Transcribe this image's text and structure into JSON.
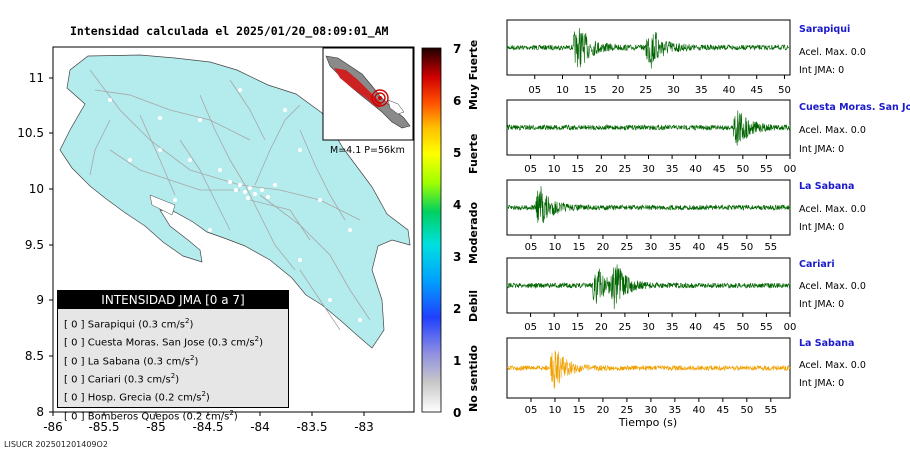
{
  "map": {
    "title": "Intensidad calculada el 2025/01/20_08:09:01_AM",
    "inset_label": "M=4.1 P=56km",
    "footer": "LISUCR 202501201409O2",
    "y_ticks": [
      "11",
      "10.5",
      "10",
      "9.5",
      "9",
      "8.5",
      "8"
    ],
    "x_ticks": [
      "-86",
      "-85.5",
      "-85",
      "-84.5",
      "-84",
      "-83.5",
      "-83"
    ],
    "colors": {
      "land": "#b4ecee",
      "roads": "#a6a6a6",
      "epicenter": "#cc0000"
    }
  },
  "colorbar": {
    "ticks": [
      "0",
      "1",
      "2",
      "3",
      "4",
      "5",
      "6",
      "7"
    ],
    "labels": [
      "No sentido",
      "Debil",
      "Moderado",
      "Fuerte",
      "Muy Fuerte"
    ]
  },
  "legend": {
    "title": "INTENSIDAD JMA [0 a 7]",
    "rows": [
      {
        "jma": "[ 0 ]",
        "station": "Sarapiqui (0.3 cm/s",
        "sup": "2",
        "close": ")"
      },
      {
        "jma": "[ 0 ]",
        "station": "Cuesta Moras. San Jose (0.3 cm/s",
        "sup": "2",
        "close": ")"
      },
      {
        "jma": "[ 0 ]",
        "station": "La Sabana (0.3 cm/s",
        "sup": "2",
        "close": ")"
      },
      {
        "jma": "[ 0 ]",
        "station": "Cariari (0.3 cm/s",
        "sup": "2",
        "close": ")"
      },
      {
        "jma": "[ 0 ]",
        "station": "Hosp. Grecia (0.2 cm/s",
        "sup": "2",
        "close": ")"
      },
      {
        "jma": "[ 0 ]",
        "station": "Bomberos Quepos (0.2 cm/s",
        "sup": "2",
        "close": ")"
      }
    ]
  },
  "traces": {
    "xlabel": "Tiempo (s)",
    "panels": [
      {
        "station": "Sarapiqui",
        "acel": "Acel. Max. 0.0",
        "int": "Int JMA: 0",
        "ticks": [
          "05",
          "10",
          "15",
          "20",
          "25",
          "30",
          "35",
          "40",
          "45",
          "50"
        ],
        "color": "#006400"
      },
      {
        "station": "Cuesta Moras. San Jose",
        "acel": "Acel. Max. 0.0",
        "int": "Int JMA: 0",
        "ticks": [
          "05",
          "10",
          "15",
          "20",
          "25",
          "30",
          "35",
          "40",
          "45",
          "50",
          "55",
          "00"
        ],
        "color": "#006400"
      },
      {
        "station": "La Sabana",
        "acel": "Acel. Max. 0.0",
        "int": "Int JMA: 0",
        "ticks": [
          "05",
          "10",
          "15",
          "20",
          "25",
          "30",
          "35",
          "40",
          "45",
          "50",
          "55"
        ],
        "color": "#006400"
      },
      {
        "station": "Cariari",
        "acel": "Acel. Max. 0.0",
        "int": "Int JMA: 0",
        "ticks": [
          "05",
          "10",
          "15",
          "20",
          "25",
          "30",
          "35",
          "40",
          "45",
          "50",
          "55",
          "00"
        ],
        "color": "#006400"
      },
      {
        "station": "La Sabana",
        "acel": "Acel. Max. 0.0",
        "int": "Int JMA: 0",
        "ticks": [
          "05",
          "10",
          "15",
          "20",
          "25",
          "30",
          "35",
          "40",
          "45",
          "50",
          "55"
        ],
        "color": "#f0a000"
      }
    ]
  },
  "chart_data": [
    {
      "type": "heatmap",
      "title": "Intensidad calculada el 2025/01/20_08:09:01_AM",
      "xlim": [
        -86,
        -82.6
      ],
      "ylim": [
        8,
        11.3
      ],
      "legend": "bottom-left",
      "stations": [
        {
          "name": "Sarapiqui",
          "jma": 0,
          "accel_cm_s2": 0.3
        },
        {
          "name": "Cuesta Moras. San Jose",
          "jma": 0,
          "accel_cm_s2": 0.3
        },
        {
          "name": "La Sabana",
          "jma": 0,
          "accel_cm_s2": 0.3
        },
        {
          "name": "Cariari",
          "jma": 0,
          "accel_cm_s2": 0.3
        },
        {
          "name": "Hosp. Grecia",
          "jma": 0,
          "accel_cm_s2": 0.2
        },
        {
          "name": "Bomberos Quepos",
          "jma": 0,
          "accel_cm_s2": 0.2
        }
      ],
      "colorbar_range": [
        0,
        7
      ]
    },
    {
      "type": "line",
      "xlabel": "Tiempo (s)",
      "series": [
        {
          "name": "Sarapiqui",
          "burst_s": [
            13,
            26
          ],
          "duration_s": 51
        },
        {
          "name": "Cuesta Moras. San Jose",
          "burst_s": [
            49
          ],
          "duration_s": 60
        },
        {
          "name": "La Sabana",
          "burst_s": [
            7
          ],
          "duration_s": 59
        },
        {
          "name": "Cariari",
          "burst_s": [
            19,
            23
          ],
          "duration_s": 60
        },
        {
          "name": "La Sabana",
          "burst_s": [
            10
          ],
          "duration_s": 59
        }
      ]
    }
  ]
}
